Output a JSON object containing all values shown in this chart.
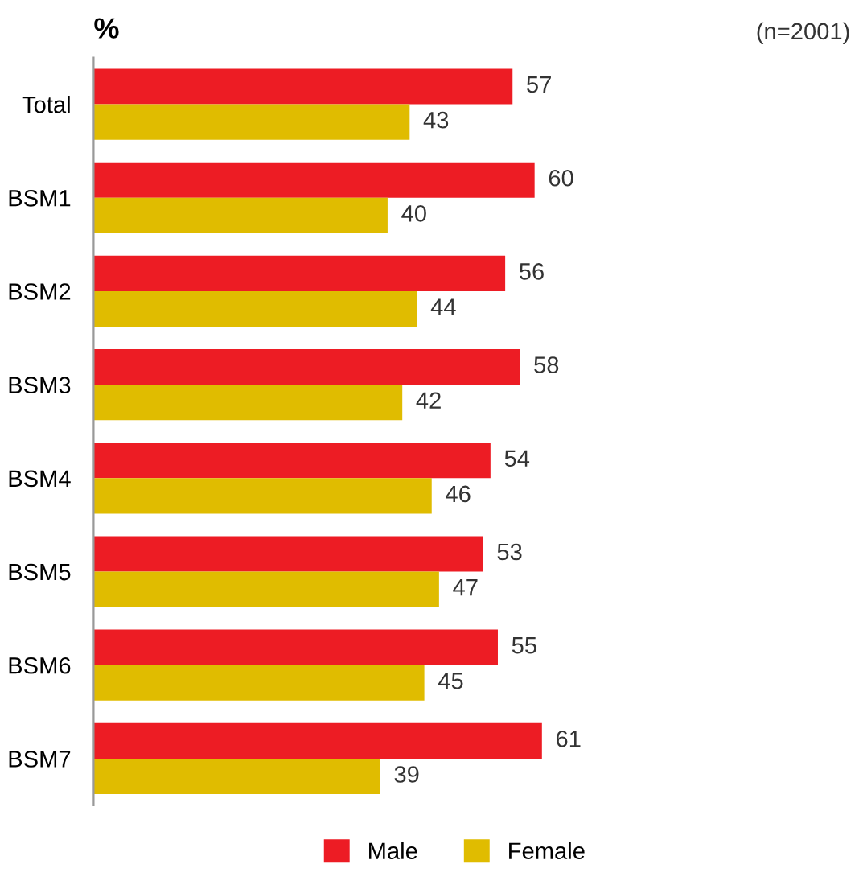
{
  "chart_data": {
    "type": "bar",
    "orientation": "horizontal",
    "title": "%",
    "annotations": [
      "(n=2001)"
    ],
    "categories": [
      "Total",
      "BSM1",
      "BSM2",
      "BSM3",
      "BSM4",
      "BSM5",
      "BSM6",
      "BSM7"
    ],
    "series": [
      {
        "name": "Male",
        "color": "#ed1c24",
        "values": [
          57,
          60,
          56,
          58,
          54,
          53,
          55,
          61
        ]
      },
      {
        "name": "Female",
        "color": "#e0bc00",
        "values": [
          43,
          40,
          44,
          42,
          46,
          47,
          45,
          39
        ]
      }
    ],
    "tick_labels": "y",
    "data_labels": true,
    "legend": "bottom",
    "grid": false
  }
}
